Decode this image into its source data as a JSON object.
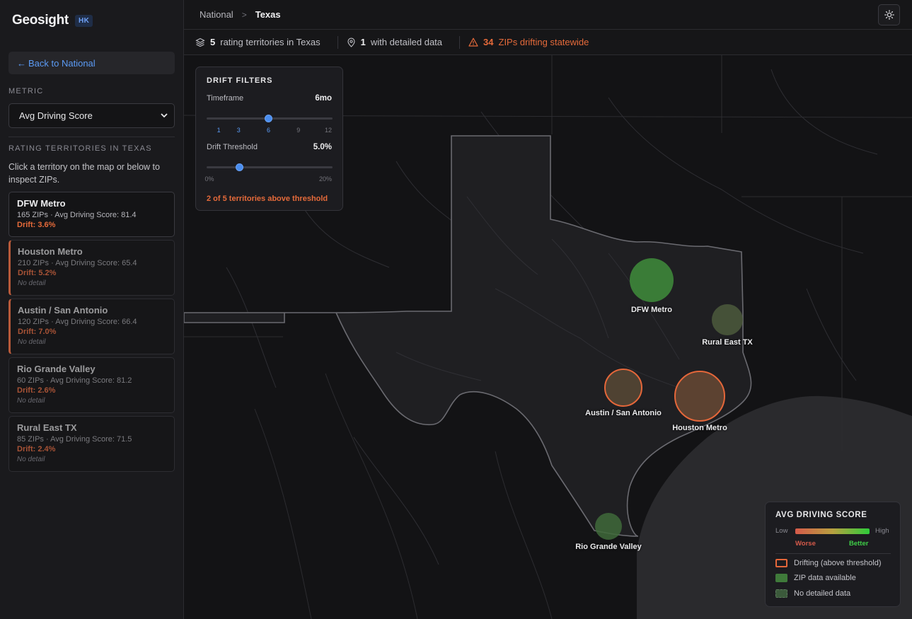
{
  "brand": {
    "name": "Geosight",
    "badge": "HK"
  },
  "sidebar": {
    "back_label": "Back to National",
    "metric_label": "METRIC",
    "metric_value": "Avg Driving Score",
    "territories_label": "RATING TERRITORIES IN TEXAS",
    "hint": "Click a territory on the map or below to inspect ZIPs.",
    "territories": [
      {
        "name": "DFW Metro",
        "meta": "165 ZIPs · Avg Driving Score: 81.4",
        "drift": "Drift: 3.6%",
        "note": ""
      },
      {
        "name": "Houston Metro",
        "meta": "210 ZIPs · Avg Driving Score: 65.4",
        "drift": "Drift: 5.2%",
        "note": "No detail"
      },
      {
        "name": "Austin / San Antonio",
        "meta": "120 ZIPs · Avg Driving Score: 66.4",
        "drift": "Drift: 7.0%",
        "note": "No detail"
      },
      {
        "name": "Rio Grande Valley",
        "meta": "60 ZIPs · Avg Driving Score: 81.2",
        "drift": "Drift: 2.6%",
        "note": "No detail"
      },
      {
        "name": "Rural East TX",
        "meta": "85 ZIPs · Avg Driving Score: 71.5",
        "drift": "Drift: 2.4%",
        "note": "No detail"
      }
    ]
  },
  "breadcrumb": {
    "parent": "National",
    "separator": ">",
    "current": "Texas"
  },
  "status": {
    "territories_count": "5",
    "territories_text": "rating territories in Texas",
    "detailed_count": "1",
    "detailed_text": "with detailed data",
    "drift_count": "34",
    "drift_text": "ZIPs drifting statewide"
  },
  "filters": {
    "title": "DRIFT FILTERS",
    "timeframe_label": "Timeframe",
    "timeframe_value": "6mo",
    "timeframe_ticks": [
      "1",
      "3",
      "6",
      "9",
      "12"
    ],
    "timeframe_selected": 6,
    "threshold_label": "Drift Threshold",
    "threshold_value": "5.0%",
    "threshold_min": "0%",
    "threshold_max": "20%",
    "threshold_fraction": 0.25,
    "summary": "2 of 5 territories above threshold"
  },
  "map_labels": {
    "dfw": "DFW Metro",
    "east": "Rural East TX",
    "austin": "Austin / San Antonio",
    "houston": "Houston Metro",
    "rgv": "Rio Grande Valley"
  },
  "legend": {
    "title": "AVG DRIVING SCORE",
    "low": "Low",
    "high": "High",
    "worse": "Worse",
    "better": "Better",
    "items": [
      "Drifting (above threshold)",
      "ZIP data available",
      "No detailed data"
    ],
    "colors": {
      "drift": "#e5673a",
      "data": "#3f7a3a",
      "nodata": "#3b5a3b"
    }
  }
}
